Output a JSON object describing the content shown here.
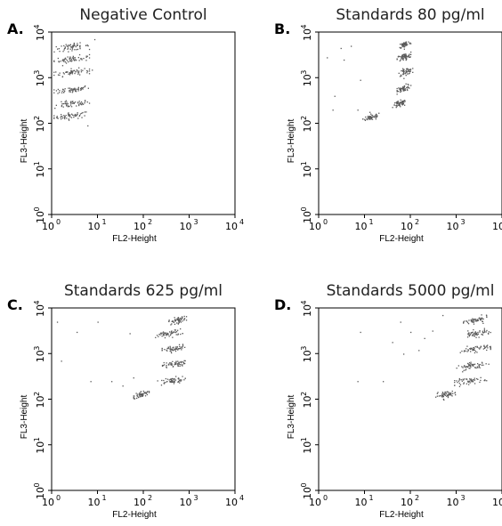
{
  "chart_data": [
    {
      "panel_label": "A.",
      "title": "Negative Control",
      "type": "scatter",
      "xlabel": "FL2-Height",
      "ylabel": "FL3-Height",
      "xscale": "log",
      "yscale": "log",
      "xlim": [
        1,
        10000
      ],
      "ylim": [
        1,
        10000
      ],
      "xticks": [
        "10",
        "10",
        "10",
        "10",
        "10"
      ],
      "xtick_exponents": [
        "0",
        "1",
        "2",
        "3",
        "4"
      ],
      "yticks": [
        "10",
        "10",
        "10",
        "10",
        "10"
      ],
      "ytick_exponents": [
        "0",
        "1",
        "2",
        "3",
        "4"
      ],
      "grid": false,
      "clusters": [
        {
          "x_min": 1.1,
          "x_max": 6.5,
          "y": 150
        },
        {
          "x_min": 1.1,
          "x_max": 6.5,
          "y": 270
        },
        {
          "x_min": 1.1,
          "x_max": 6.5,
          "y": 560
        },
        {
          "x_min": 1.1,
          "x_max": 6.5,
          "y": 1350
        },
        {
          "x_min": 1.1,
          "x_max": 6.5,
          "y": 2600
        },
        {
          "x_min": 1.1,
          "x_max": 6.5,
          "y": 4800
        }
      ],
      "outliers": [
        [
          8.5,
          7000
        ],
        [
          7.5,
          1500
        ],
        [
          6.0,
          90
        ]
      ]
    },
    {
      "panel_label": "B.",
      "title": "Standards 80 pg/ml",
      "type": "scatter",
      "xlabel": "FL2-Height",
      "ylabel": "FL3-Height",
      "xscale": "log",
      "yscale": "log",
      "xlim": [
        1,
        10000
      ],
      "ylim": [
        1,
        10000
      ],
      "xticks": [
        "10",
        "10",
        "10",
        "10",
        "10"
      ],
      "xtick_exponents": [
        "0",
        "1",
        "2",
        "3",
        "4"
      ],
      "yticks": [
        "10",
        "10",
        "10",
        "10",
        "10"
      ],
      "ytick_exponents": [
        "0",
        "1",
        "2",
        "3",
        "4"
      ],
      "grid": false,
      "clusters": [
        {
          "x_min": 9,
          "x_max": 22,
          "y": 140
        },
        {
          "x_min": 40,
          "x_max": 80,
          "y": 270
        },
        {
          "x_min": 50,
          "x_max": 100,
          "y": 600
        },
        {
          "x_min": 55,
          "x_max": 110,
          "y": 1400
        },
        {
          "x_min": 50,
          "x_max": 100,
          "y": 2900
        },
        {
          "x_min": 55,
          "x_max": 100,
          "y": 5500
        }
      ],
      "outliers": [
        [
          1.5,
          2800
        ],
        [
          2.2,
          400
        ],
        [
          3.0,
          4500
        ],
        [
          3.5,
          2500
        ],
        [
          5.0,
          5000
        ],
        [
          7.0,
          200
        ],
        [
          8.0,
          900
        ],
        [
          2.0,
          200
        ]
      ]
    },
    {
      "panel_label": "C.",
      "title": "Standards 625 pg/ml",
      "type": "scatter",
      "xlabel": "FL2-Height",
      "ylabel": "FL3-Height",
      "xscale": "log",
      "yscale": "log",
      "xlim": [
        1,
        10000
      ],
      "ylim": [
        1,
        10000
      ],
      "xticks": [
        "10",
        "10",
        "10",
        "10",
        "10"
      ],
      "xtick_exponents": [
        "0",
        "1",
        "2",
        "3",
        "4"
      ],
      "yticks": [
        "10",
        "10",
        "10",
        "10",
        "10"
      ],
      "ytick_exponents": [
        "0",
        "1",
        "2",
        "3",
        "4"
      ],
      "grid": false,
      "clusters": [
        {
          "x_min": 60,
          "x_max": 130,
          "y": 130
        },
        {
          "x_min": 200,
          "x_max": 800,
          "y": 260
        },
        {
          "x_min": 250,
          "x_max": 800,
          "y": 600
        },
        {
          "x_min": 250,
          "x_max": 850,
          "y": 1300
        },
        {
          "x_min": 180,
          "x_max": 700,
          "y": 2800
        },
        {
          "x_min": 350,
          "x_max": 850,
          "y": 5500
        }
      ],
      "outliers": [
        [
          1.3,
          5000
        ],
        [
          1.6,
          700
        ],
        [
          3.5,
          3000
        ],
        [
          10,
          5000
        ],
        [
          20,
          250
        ],
        [
          35,
          200
        ],
        [
          50,
          2800
        ],
        [
          60,
          300
        ],
        [
          7,
          250
        ]
      ]
    },
    {
      "panel_label": "D.",
      "title": "Standards 5000 pg/ml",
      "type": "scatter",
      "xlabel": "FL2-Height",
      "ylabel": "FL3-Height",
      "xscale": "log",
      "yscale": "log",
      "xlim": [
        1,
        10000
      ],
      "ylim": [
        1,
        10000
      ],
      "xticks": [
        "10",
        "10",
        "10",
        "10",
        "10"
      ],
      "xtick_exponents": [
        "0",
        "1",
        "2",
        "3",
        "4"
      ],
      "yticks": [
        "10",
        "10",
        "10",
        "10",
        "10"
      ],
      "ytick_exponents": [
        "0",
        "1",
        "2",
        "3",
        "4"
      ],
      "grid": false,
      "clusters": [
        {
          "x_min": 350,
          "x_max": 1000,
          "y": 130
        },
        {
          "x_min": 900,
          "x_max": 4500,
          "y": 260
        },
        {
          "x_min": 1000,
          "x_max": 5000,
          "y": 550
        },
        {
          "x_min": 1200,
          "x_max": 5500,
          "y": 1300
        },
        {
          "x_min": 1300,
          "x_max": 5500,
          "y": 2800
        },
        {
          "x_min": 1400,
          "x_max": 5000,
          "y": 5500
        }
      ],
      "outliers": [
        [
          7,
          250
        ],
        [
          25,
          250
        ],
        [
          40,
          1800
        ],
        [
          60,
          5000
        ],
        [
          70,
          1000
        ],
        [
          100,
          3000
        ],
        [
          150,
          1200
        ],
        [
          200,
          2200
        ],
        [
          300,
          3200
        ],
        [
          500,
          7000
        ],
        [
          8,
          3000
        ]
      ]
    }
  ]
}
